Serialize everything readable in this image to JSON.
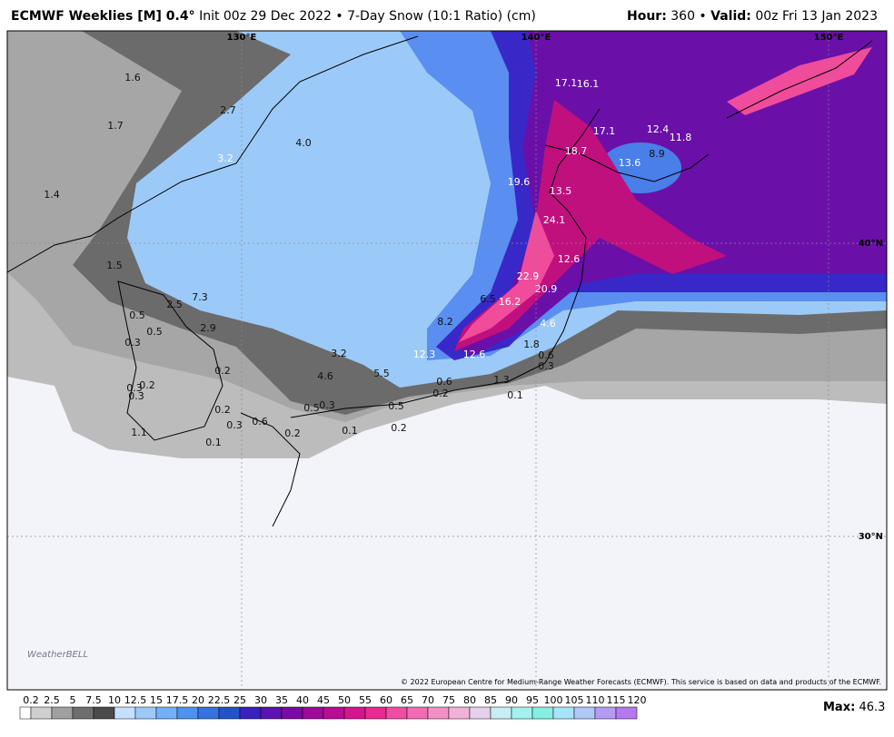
{
  "header": {
    "title": "ECMWF Weeklies [M] 0.4°",
    "subtitle": "Init 00z 29 Dec 2022 • 7-Day Snow (10:1 Ratio) (cm)",
    "hour_label": "Hour:",
    "hour": "360 •",
    "valid_label": "Valid:",
    "valid": "00z Fri 13 Jan 2023"
  },
  "map": {
    "longitudes": [
      "130°E",
      "140°E",
      "150°E"
    ],
    "latitudes": [
      "40°N",
      "30°N"
    ],
    "values": [
      "1.6",
      "2.7",
      "1.7",
      "4.0",
      "3.2",
      "1.4",
      "1.5",
      "7.3",
      "2.5",
      "0.5",
      "2.9",
      "0.5",
      "0.3",
      "3.2",
      "0.2",
      "4.6",
      "5.5",
      "0.3",
      "0.2",
      "0.3",
      "0.6",
      "0.2",
      "1.3",
      "0.1",
      "0.5",
      "0.3",
      "0.5",
      "0.2",
      "0.3",
      "0.6",
      "0.2",
      "0.1",
      "0.2",
      "1.1",
      "0.1",
      "12.3",
      "12.6",
      "1.8",
      "0.6",
      "0.3",
      "4.6",
      "8.2",
      "6.5",
      "16.2",
      "22.9",
      "20.9",
      "12.6",
      "24.1",
      "13.5",
      "19.6",
      "18.7",
      "13.6",
      "8.9",
      "17.1",
      "12.4",
      "11.8",
      "17.1",
      "16.1"
    ]
  },
  "logo": "WeatherBELL",
  "copyright": "© 2022 European Centre for Medium-Range Weather Forecasts (ECMWF). This service is based on data and products of the ECMWF.",
  "colorbar": {
    "labels": [
      0.2,
      2.5,
      5,
      7.5,
      10,
      12.5,
      15,
      17.5,
      20,
      22.5,
      25,
      30,
      35,
      40,
      45,
      50,
      55,
      60,
      65,
      70,
      75,
      80,
      85,
      90,
      95,
      100,
      105,
      110,
      115,
      120
    ],
    "colors": [
      "#ffffff",
      "#cfcfcf",
      "#a0a0a0",
      "#6e6e6e",
      "#4a4a4a",
      "#c4e0ff",
      "#9ccaf8",
      "#74b0f8",
      "#4e92f0",
      "#3672e0",
      "#2452c8",
      "#3a20c0",
      "#5a12b0",
      "#7a0aa6",
      "#9c0a9c",
      "#ba0c92",
      "#d4168c",
      "#ea2a90",
      "#f04ca2",
      "#f26cb4",
      "#f290c6",
      "#f2b2d8",
      "#e4d0ec",
      "#c8eef4",
      "#a4f2ee",
      "#86eee2",
      "#a8e4f8",
      "#b0c8f8",
      "#b49cf4",
      "#b478f0"
    ]
  },
  "max_label": "Max:",
  "max": "46.3"
}
